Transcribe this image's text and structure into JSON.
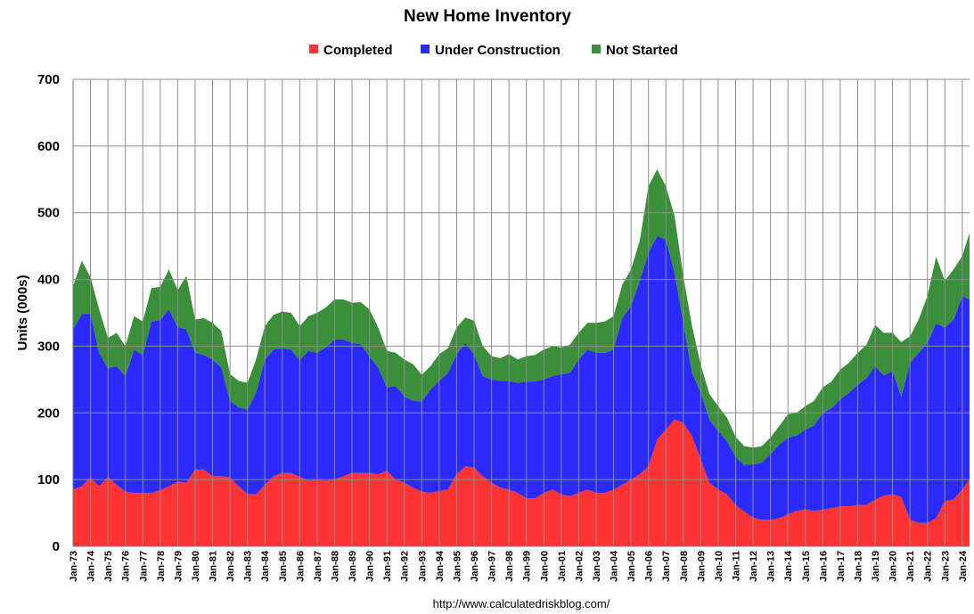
{
  "chart_data": {
    "type": "area",
    "stacked": true,
    "title": "New Home Inventory",
    "ylabel": "Units (000s)",
    "xlabel": "",
    "ylim": [
      0,
      700
    ],
    "yticks": [
      0,
      100,
      200,
      300,
      400,
      500,
      600,
      700
    ],
    "x_start": "Jan-73",
    "x_end": "Jun-24",
    "xtick_labels": [
      "Jan-73",
      "Jan-74",
      "Jan-75",
      "Jan-76",
      "Jan-77",
      "Jan-78",
      "Jan-79",
      "Jan-80",
      "Jan-81",
      "Jan-82",
      "Jan-83",
      "Jan-84",
      "Jan-85",
      "Jan-86",
      "Jan-87",
      "Jan-88",
      "Jan-89",
      "Jan-90",
      "Jan-91",
      "Jan-92",
      "Jan-93",
      "Jan-94",
      "Jan-95",
      "Jan-96",
      "Jan-97",
      "Jan-98",
      "Jan-99",
      "Jan-00",
      "Jan-01",
      "Jan-02",
      "Jan-03",
      "Jan-04",
      "Jan-05",
      "Jan-06",
      "Jan-07",
      "Jan-08",
      "Jan-09",
      "Jan-10",
      "Jan-11",
      "Jan-12",
      "Jan-13",
      "Jan-14",
      "Jan-15",
      "Jan-16",
      "Jan-17",
      "Jan-18",
      "Jan-19",
      "Jan-20",
      "Jan-21",
      "Jan-22",
      "Jan-23",
      "Jan-24"
    ],
    "grid": true,
    "legend_position": "top",
    "x": [
      "Jan-73",
      "Jul-73",
      "Jan-74",
      "Jul-74",
      "Jan-75",
      "Jul-75",
      "Jan-76",
      "Jul-76",
      "Jan-77",
      "Jul-77",
      "Jan-78",
      "Jul-78",
      "Jan-79",
      "Jul-79",
      "Jan-80",
      "Jul-80",
      "Jan-81",
      "Jul-81",
      "Jan-82",
      "Jul-82",
      "Jan-83",
      "Jul-83",
      "Jan-84",
      "Jul-84",
      "Jan-85",
      "Jul-85",
      "Jan-86",
      "Jul-86",
      "Jan-87",
      "Jul-87",
      "Jan-88",
      "Jul-88",
      "Jan-89",
      "Jul-89",
      "Jan-90",
      "Jul-90",
      "Jan-91",
      "Jul-91",
      "Jan-92",
      "Jul-92",
      "Jan-93",
      "Jul-93",
      "Jan-94",
      "Jul-94",
      "Jan-95",
      "Jul-95",
      "Jan-96",
      "Jul-96",
      "Jan-97",
      "Jul-97",
      "Jan-98",
      "Jul-98",
      "Jan-99",
      "Jul-99",
      "Jan-00",
      "Jul-00",
      "Jan-01",
      "Jul-01",
      "Jan-02",
      "Jul-02",
      "Jan-03",
      "Jul-03",
      "Jan-04",
      "Jul-04",
      "Jan-05",
      "Jul-05",
      "Jan-06",
      "Jul-06",
      "Jan-07",
      "Jul-07",
      "Jan-08",
      "Jul-08",
      "Jan-09",
      "Jul-09",
      "Jan-10",
      "Jul-10",
      "Jan-11",
      "Jul-11",
      "Jan-12",
      "Jul-12",
      "Jan-13",
      "Jul-13",
      "Jan-14",
      "Jul-14",
      "Jan-15",
      "Jul-15",
      "Jan-16",
      "Jul-16",
      "Jan-17",
      "Jul-17",
      "Jan-18",
      "Jul-18",
      "Jan-19",
      "Jul-19",
      "Jan-20",
      "Jul-20",
      "Jan-21",
      "Jul-21",
      "Jan-22",
      "Jul-22",
      "Jan-23",
      "Jul-23",
      "Jan-24",
      "Jun-24"
    ],
    "series": [
      {
        "name": "Completed",
        "color": "#ff3333",
        "values": [
          85,
          90,
          103,
          90,
          104,
          92,
          82,
          80,
          80,
          80,
          84,
          90,
          97,
          95,
          115,
          115,
          105,
          105,
          103,
          90,
          78,
          78,
          92,
          105,
          110,
          110,
          104,
          98,
          100,
          98,
          100,
          105,
          110,
          110,
          110,
          108,
          113,
          100,
          95,
          88,
          82,
          80,
          83,
          85,
          108,
          120,
          118,
          105,
          95,
          88,
          85,
          80,
          72,
          72,
          80,
          85,
          78,
          75,
          80,
          85,
          80,
          80,
          85,
          92,
          100,
          108,
          120,
          160,
          175,
          190,
          185,
          165,
          130,
          95,
          85,
          78,
          62,
          52,
          43,
          40,
          40,
          42,
          48,
          53,
          55,
          53,
          55,
          57,
          60,
          60,
          62,
          62,
          70,
          76,
          78,
          74,
          40,
          35,
          35,
          42,
          68,
          70,
          85,
          100
        ]
      },
      {
        "name": "Under Construction",
        "color": "#2a2aff",
        "values": [
          240,
          258,
          245,
          200,
          163,
          178,
          173,
          215,
          207,
          257,
          255,
          265,
          232,
          230,
          175,
          172,
          175,
          163,
          115,
          118,
          127,
          152,
          188,
          190,
          187,
          185,
          175,
          195,
          190,
          200,
          210,
          205,
          195,
          193,
          175,
          160,
          125,
          140,
          130,
          130,
          135,
          155,
          165,
          175,
          180,
          185,
          170,
          150,
          155,
          160,
          163,
          165,
          175,
          175,
          170,
          170,
          180,
          185,
          200,
          210,
          210,
          210,
          210,
          250,
          260,
          290,
          320,
          305,
          285,
          220,
          150,
          95,
          100,
          95,
          88,
          80,
          72,
          70,
          80,
          85,
          98,
          110,
          115,
          113,
          120,
          128,
          145,
          150,
          160,
          170,
          180,
          190,
          200,
          180,
          185,
          150,
          235,
          255,
          270,
          292,
          260,
          270,
          290,
          270
        ]
      },
      {
        "name": "Not Started",
        "color": "#3b8f3b",
        "values": [
          65,
          80,
          55,
          65,
          45,
          50,
          45,
          50,
          50,
          50,
          50,
          60,
          55,
          80,
          50,
          55,
          55,
          55,
          40,
          40,
          40,
          50,
          50,
          52,
          55,
          55,
          51,
          52,
          60,
          60,
          60,
          60,
          60,
          63,
          70,
          60,
          55,
          50,
          55,
          55,
          40,
          35,
          40,
          37,
          40,
          38,
          50,
          45,
          35,
          34,
          40,
          35,
          38,
          40,
          45,
          45,
          40,
          42,
          40,
          40,
          45,
          47,
          50,
          50,
          55,
          60,
          100,
          100,
          80,
          85,
          70,
          70,
          42,
          38,
          37,
          35,
          30,
          28,
          25,
          25,
          25,
          28,
          35,
          34,
          35,
          37,
          38,
          40,
          45,
          45,
          48,
          50,
          62,
          64,
          57,
          82,
          40,
          50,
          70,
          100,
          70,
          75,
          60,
          100
        ]
      }
    ]
  },
  "source_text": "http://www.calculatedriskblog.com/"
}
